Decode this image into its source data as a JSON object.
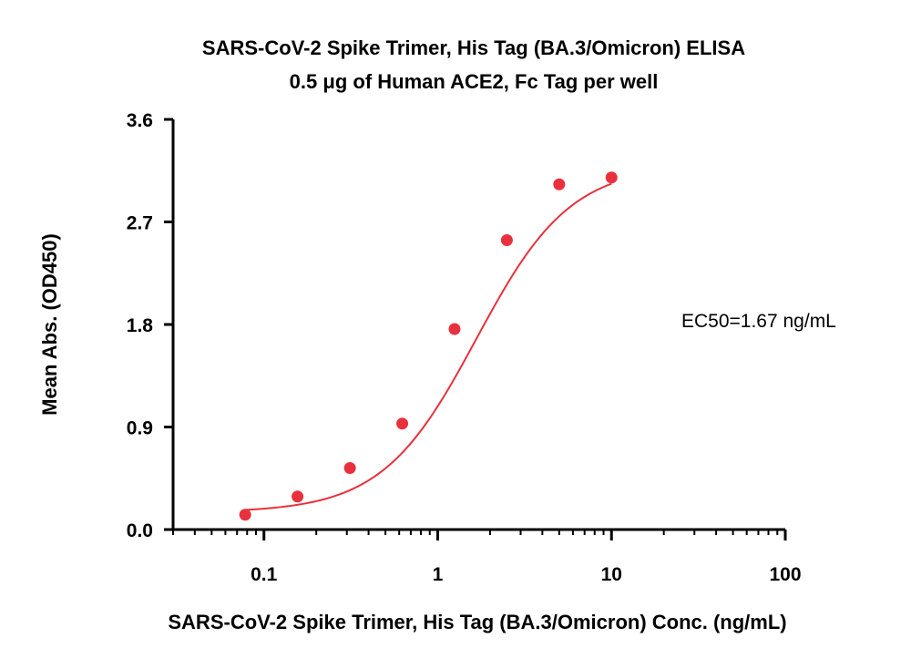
{
  "chart_data": {
    "type": "scatter",
    "title": "SARS-CoV-2 Spike Trimer, His Tag (BA.3/Omicron) ELISA",
    "subtitle": "0.5 μg of Human ACE2, Fc Tag per well",
    "xlabel": "SARS-CoV-2 Spike Trimer, His Tag (BA.3/Omicron) Conc. (ng/mL)",
    "ylabel": "Mean Abs. (OD450)",
    "x_scale": "log",
    "xlim": [
      0.03,
      100
    ],
    "ylim": [
      0,
      3.6
    ],
    "x_ticks": [
      {
        "value": 0.1,
        "label": "0.1"
      },
      {
        "value": 1,
        "label": "1"
      },
      {
        "value": 10,
        "label": "10"
      },
      {
        "value": 100,
        "label": "100"
      }
    ],
    "y_ticks": [
      {
        "value": 0,
        "label": "0.0"
      },
      {
        "value": 0.9,
        "label": "0.9"
      },
      {
        "value": 1.8,
        "label": "1.8"
      },
      {
        "value": 2.7,
        "label": "2.7"
      },
      {
        "value": 3.6,
        "label": "3.6"
      }
    ],
    "grid": false,
    "color": "#e8313c",
    "points": {
      "x": [
        0.078,
        0.156,
        0.3125,
        0.625,
        1.25,
        2.5,
        5,
        10
      ],
      "y": [
        0.13,
        0.29,
        0.54,
        0.93,
        1.76,
        2.54,
        3.03,
        3.09
      ]
    },
    "fit_curve": {
      "model": "4PL",
      "bottom": 0.15,
      "top": 3.2,
      "ec50": 1.67,
      "hill": 1.6
    },
    "annotation": "EC50=1.67 ng/mL"
  }
}
